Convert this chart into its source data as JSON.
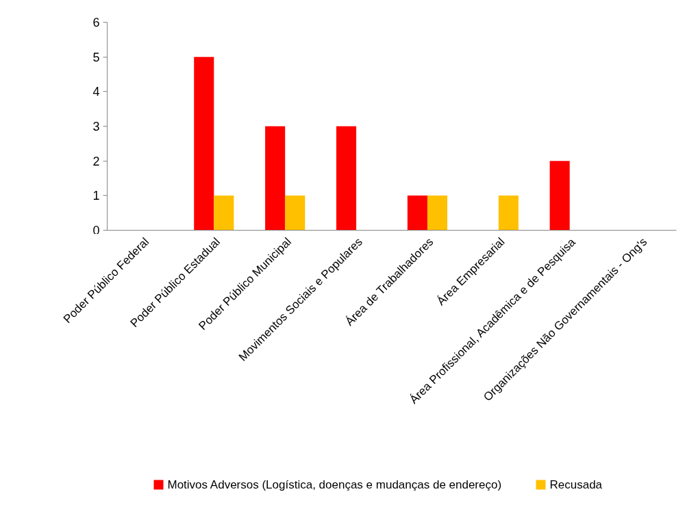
{
  "chart_data": {
    "type": "bar",
    "categories": [
      "Poder Público Federal",
      "Poder Público Estadual",
      "Poder Público Municipal",
      "Movimentos Sociais e Populares",
      "Área de Trabalhadores",
      "Área Empresarial",
      "Área Profissional, Acadêmica e de Pesquisa",
      "Organizações Não Governamentais - Ong's"
    ],
    "series": [
      {
        "name": "Motivos Adversos (Logística, doenças e mudanças de endereço)",
        "color": "#ff0000",
        "values": [
          0,
          5,
          3,
          3,
          1,
          0,
          2,
          0
        ]
      },
      {
        "name": "Recusada",
        "color": "#ffc000",
        "values": [
          0,
          1,
          1,
          0,
          1,
          1,
          0,
          0
        ]
      }
    ],
    "ylim": [
      0,
      6
    ],
    "yticks": [
      0,
      1,
      2,
      3,
      4,
      5,
      6
    ],
    "grid": false,
    "legend": "bottom"
  }
}
